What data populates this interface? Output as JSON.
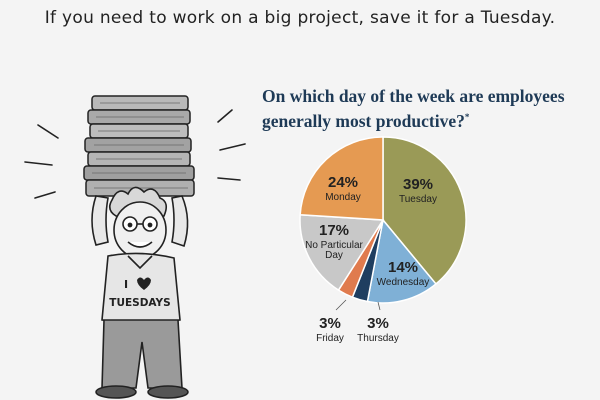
{
  "headline": "If you need to work on a big project, save it for a Tuesday.",
  "shirt": {
    "line1": "I",
    "line2": "TUESDAYS",
    "heart_icon": "heart-icon"
  },
  "chart_data": {
    "type": "pie",
    "title": "On which day of the week are employees generally most productive?",
    "title_marker": "*",
    "slices": [
      {
        "label": "Tuesday",
        "value": 39,
        "value_label": "39%",
        "color": "#9a9a57"
      },
      {
        "label": "Wednesday",
        "value": 14,
        "value_label": "14%",
        "color": "#7fb0d6"
      },
      {
        "label": "Thursday",
        "value": 3,
        "value_label": "3%",
        "color": "#1f3e60"
      },
      {
        "label": "Friday",
        "value": 3,
        "value_label": "3%",
        "color": "#e07b4e"
      },
      {
        "label": "No Particular Day",
        "value": 17,
        "value_label": "17%",
        "color": "#c8c8c8"
      },
      {
        "label": "Monday",
        "value": 24,
        "value_label": "24%",
        "color": "#e59a52"
      }
    ],
    "legend": "none"
  }
}
